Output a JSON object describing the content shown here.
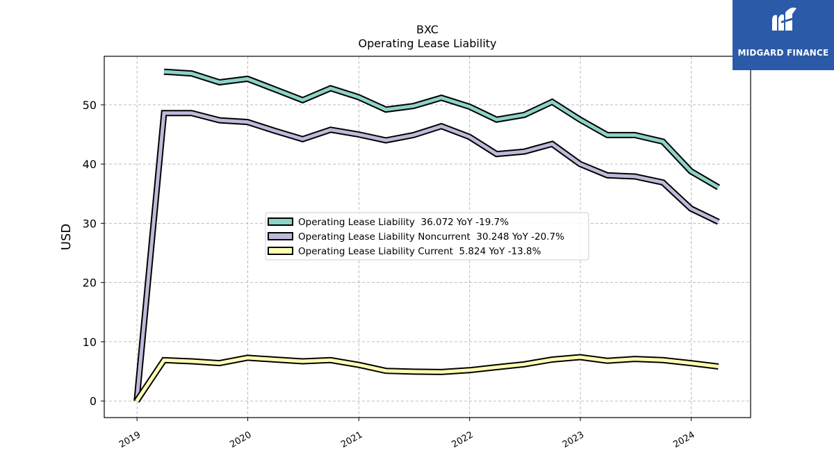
{
  "chart_data": {
    "type": "line",
    "title": "BXC",
    "subtitle": "Operating Lease Liability",
    "ylabel": "USD",
    "xlabel": "",
    "ylim": [
      -2.8,
      58.2
    ],
    "yticks": [
      0,
      10,
      20,
      30,
      40,
      50
    ],
    "xticks": [
      "2019",
      "2020",
      "2021",
      "2022",
      "2023",
      "2024"
    ],
    "xlim": [
      "2018-09-15",
      "2024-07-15"
    ],
    "grid": true,
    "legend_position": "center",
    "x": [
      "2018-12-31",
      "2019-03-31",
      "2019-06-30",
      "2019-09-30",
      "2019-12-31",
      "2020-03-31",
      "2020-06-30",
      "2020-09-30",
      "2020-12-31",
      "2021-03-31",
      "2021-06-30",
      "2021-09-30",
      "2021-12-31",
      "2022-03-31",
      "2022-06-30",
      "2022-09-30",
      "2022-12-31",
      "2023-03-31",
      "2023-06-30",
      "2023-09-30",
      "2023-12-31",
      "2024-03-31"
    ],
    "series": [
      {
        "name": "Operating Lease Liability",
        "legend_label": "Operating Lease Liability  36.072 YoY -19.7%",
        "color": "#8dd3c7",
        "values": [
          null,
          55.6,
          55.3,
          53.8,
          54.4,
          52.6,
          50.8,
          52.8,
          51.3,
          49.2,
          49.8,
          51.2,
          49.7,
          47.5,
          48.3,
          50.5,
          47.5,
          44.9,
          44.9,
          43.8,
          38.8,
          36.072
        ]
      },
      {
        "name": "Operating Lease Liability Noncurrent",
        "legend_label": "Operating Lease Liability Noncurrent  30.248 YoY -20.7%",
        "color": "#bebada",
        "values": [
          0.0,
          48.6,
          48.6,
          47.4,
          47.1,
          45.6,
          44.2,
          45.8,
          45.0,
          44.0,
          44.9,
          46.4,
          44.6,
          41.7,
          42.1,
          43.4,
          40.0,
          38.1,
          37.9,
          36.9,
          32.5,
          30.248
        ]
      },
      {
        "name": "Operating Lease Liability Current",
        "legend_label": "Operating Lease Liability Current  5.824 YoY -13.8%",
        "color": "#ffffb3",
        "values": [
          0.0,
          6.9,
          6.7,
          6.4,
          7.3,
          7.0,
          6.7,
          6.9,
          6.1,
          5.1,
          4.95,
          4.9,
          5.2,
          5.7,
          6.2,
          7.0,
          7.4,
          6.8,
          7.1,
          6.9,
          6.4,
          5.824
        ]
      }
    ]
  },
  "logo": {
    "name": "MIDGARD FINANCE"
  }
}
